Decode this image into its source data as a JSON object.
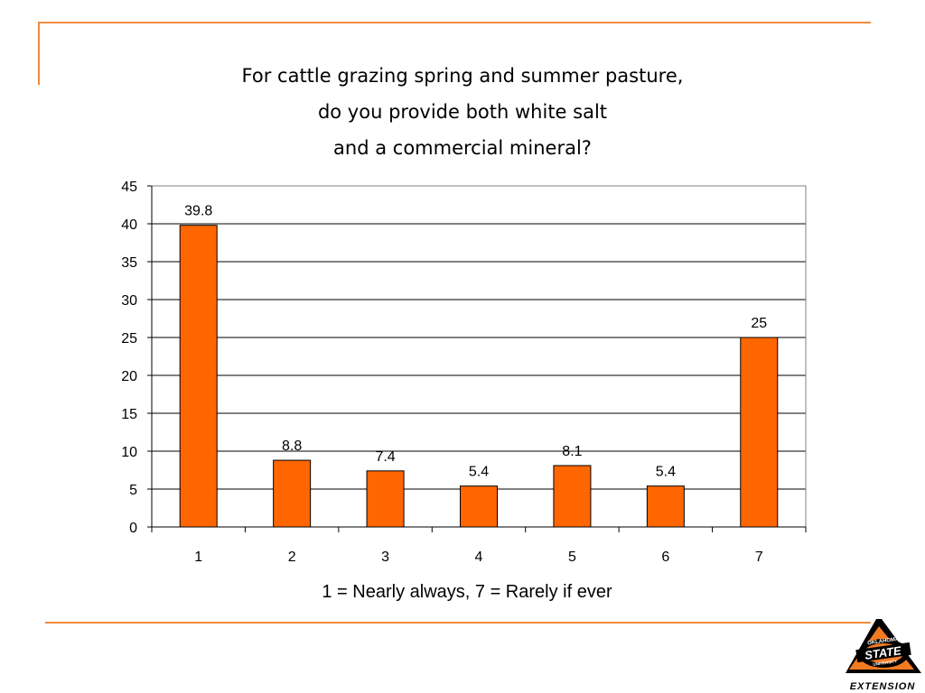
{
  "slide": {
    "title_lines": [
      "For cattle grazing spring and summer pasture,",
      "do you provide both white salt",
      "and a commercial mineral?"
    ],
    "logo": {
      "icon": "oklahoma-state-university-extension-logo",
      "text_top": "OKLAHOMA",
      "text_main": "STATE",
      "text_sub": "UNIVERSITY",
      "text_bottom": "EXTENSION"
    }
  },
  "colors": {
    "bar_fill": "#ff6600",
    "bar_stroke": "#000000",
    "frame_accent": "#f08a3c",
    "logo_orange": "#f47b20",
    "logo_black": "#000000"
  },
  "chart_data": {
    "type": "bar",
    "categories": [
      "1",
      "2",
      "3",
      "4",
      "5",
      "6",
      "7"
    ],
    "values": [
      39.8,
      8.8,
      7.4,
      5.4,
      8.1,
      5.4,
      25
    ],
    "data_labels": [
      "39.8",
      "8.8",
      "7.4",
      "5.4",
      "8.1",
      "5.4",
      "25"
    ],
    "ylim": [
      0,
      45
    ],
    "yticks": [
      0,
      5,
      10,
      15,
      20,
      25,
      30,
      35,
      40,
      45
    ],
    "xlabel": "1 = Nearly always, 7 = Rarely if ever",
    "ylabel": "",
    "grid": true,
    "legend": "none"
  }
}
